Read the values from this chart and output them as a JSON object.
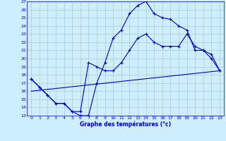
{
  "xlabel": "Graphe des températures (°c)",
  "background_color": "#cceeff",
  "grid_color": "#aacccc",
  "line_color": "#0000cc",
  "xlim": [
    -0.5,
    23.5
  ],
  "ylim": [
    13,
    27
  ],
  "xticks": [
    0,
    1,
    2,
    3,
    4,
    5,
    6,
    7,
    8,
    9,
    10,
    11,
    12,
    13,
    14,
    15,
    16,
    17,
    18,
    19,
    20,
    21,
    22,
    23
  ],
  "yticks": [
    13,
    14,
    15,
    16,
    17,
    18,
    19,
    20,
    21,
    22,
    23,
    24,
    25,
    26,
    27
  ],
  "line1_x": [
    0,
    1,
    2,
    3,
    4,
    5,
    6,
    7,
    8,
    9,
    10,
    11,
    12,
    13,
    14,
    15,
    16,
    17,
    18,
    19,
    20,
    21,
    22,
    23
  ],
  "line1_y": [
    17.5,
    16.5,
    15.5,
    14.5,
    14.5,
    13.5,
    13.0,
    13.0,
    17.0,
    19.5,
    22.5,
    23.5,
    25.5,
    26.5,
    27.0,
    25.5,
    25.0,
    24.8,
    24.0,
    23.5,
    21.0,
    21.0,
    20.5,
    18.5
  ],
  "line2_x": [
    0,
    1,
    2,
    3,
    4,
    5,
    6,
    7,
    8,
    9,
    10,
    11,
    12,
    13,
    14,
    15,
    16,
    17,
    18,
    19,
    20,
    21,
    22,
    23
  ],
  "line2_y": [
    17.5,
    16.5,
    15.5,
    14.5,
    14.5,
    13.5,
    13.5,
    19.5,
    19.0,
    18.5,
    18.5,
    19.5,
    21.0,
    22.5,
    23.0,
    22.0,
    21.5,
    21.5,
    21.5,
    23.0,
    21.5,
    21.0,
    20.0,
    18.5
  ],
  "line3_x": [
    0,
    23
  ],
  "line3_y": [
    16.0,
    18.5
  ]
}
